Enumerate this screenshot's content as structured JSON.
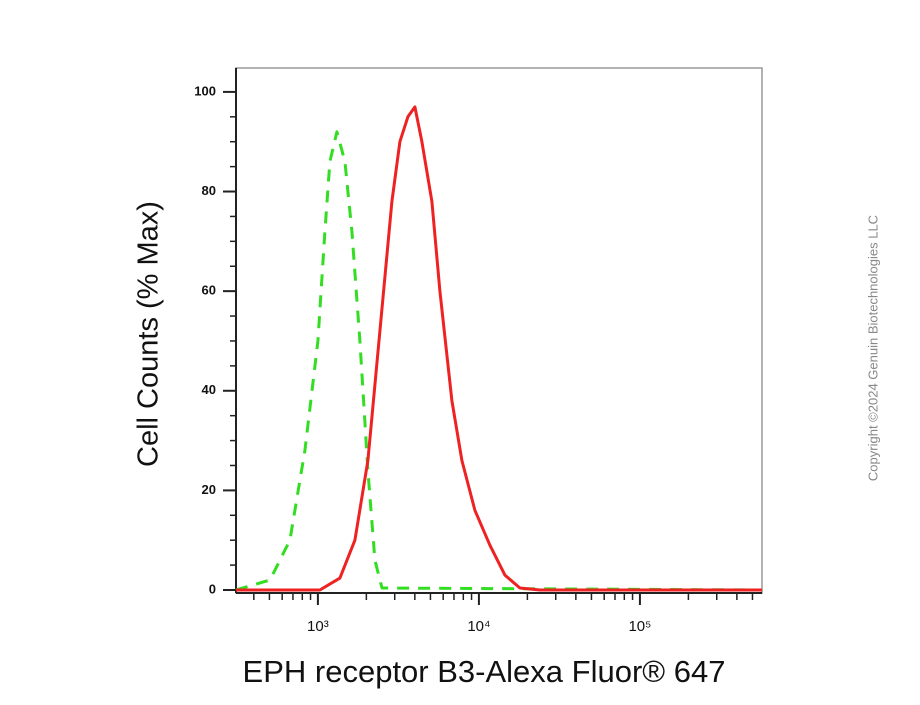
{
  "chart_data": {
    "type": "line",
    "x_label": "EPH receptor B3-Alexa Fluor® 647",
    "y_label": "Cell Counts (% Max)",
    "copyright": "Copyright ©2024 Genuin Biotechnologies LLC",
    "xscale": "log",
    "xlim": [
      310,
      573000
    ],
    "ylim": [
      -0.6,
      104.8
    ],
    "xticks": [
      {
        "value": 1000,
        "label": "10³"
      },
      {
        "value": 10000,
        "label": "10⁴"
      },
      {
        "value": 100000,
        "label": "10⁵"
      }
    ],
    "xminor_ticks": [
      400,
      500,
      600,
      700,
      800,
      900,
      2000,
      3000,
      4000,
      5000,
      6000,
      7000,
      8000,
      9000,
      20000,
      30000,
      40000,
      50000,
      60000,
      70000,
      80000,
      90000,
      200000,
      300000,
      400000,
      500000
    ],
    "yticks": [
      0,
      20,
      40,
      60,
      80,
      100
    ],
    "yminor_ticks": [
      5,
      10,
      15,
      25,
      30,
      35,
      45,
      50,
      55,
      65,
      70,
      75,
      85,
      90,
      95
    ],
    "series": [
      {
        "color": "#33dd22",
        "dashed": true,
        "x": [
          310,
          504,
          670,
          830,
          1000,
          1105,
          1187,
          1312,
          1472,
          1626,
          1823,
          2045,
          2260,
          2500,
          573000
        ],
        "values": [
          0,
          2,
          10,
          28,
          50,
          72,
          86,
          92,
          86,
          72,
          50,
          24,
          6,
          0.4,
          0
        ]
      },
      {
        "color": "#ee2222",
        "dashed": false,
        "x": [
          310,
          1029,
          1370,
          1698,
          2045,
          2427,
          2882,
          3230,
          3622,
          4002,
          4426,
          5105,
          5725,
          6796,
          7838,
          9440,
          11700,
          14500,
          17980,
          23900,
          573000
        ],
        "values": [
          0,
          0,
          2.4,
          10,
          26,
          52,
          78,
          90,
          95,
          97,
          90,
          78,
          60,
          38,
          26,
          16,
          9,
          3,
          0.4,
          0,
          0
        ]
      }
    ]
  }
}
